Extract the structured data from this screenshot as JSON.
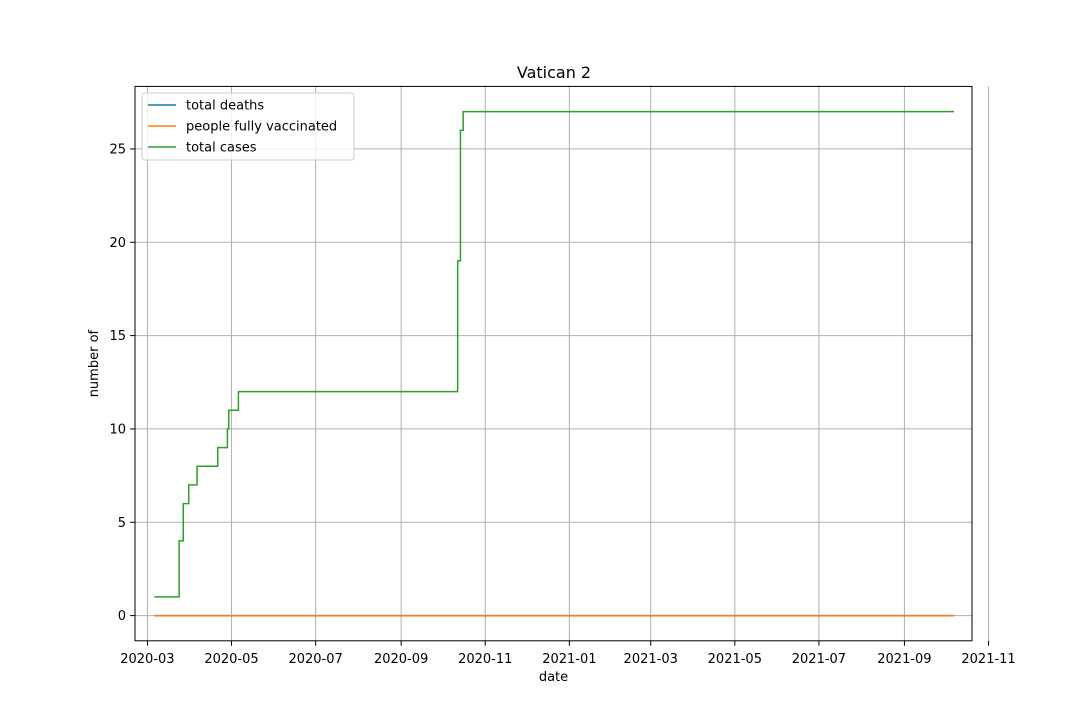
{
  "chart_data": {
    "type": "line",
    "title": "Vatican 2",
    "xlabel": "date",
    "ylabel": "number of",
    "xlim": [
      "2020-02-21",
      "2021-10-20"
    ],
    "ylim": [
      -1.35,
      28.35
    ],
    "x_ticks": [
      "2020-03-01",
      "2020-05-01",
      "2020-07-01",
      "2020-09-01",
      "2020-11-01",
      "2021-01-01",
      "2021-03-01",
      "2021-05-01",
      "2021-07-01",
      "2021-09-01",
      "2021-11-01"
    ],
    "x_tick_labels": [
      "2020-03",
      "2020-05",
      "2020-07",
      "2020-09",
      "2020-11",
      "2021-01",
      "2021-03",
      "2021-05",
      "2021-07",
      "2021-09",
      "2021-11"
    ],
    "y_ticks": [
      0,
      5,
      10,
      15,
      20,
      25
    ],
    "y_tick_labels": [
      "0",
      "5",
      "10",
      "15",
      "20",
      "25"
    ],
    "grid": true,
    "legend_position": "top-left",
    "series": [
      {
        "name": "total deaths",
        "color": "#1f77b4",
        "step": true,
        "points": [
          [
            "2020-03-06",
            0
          ],
          [
            "2021-10-07",
            0
          ]
        ]
      },
      {
        "name": "people fully vaccinated",
        "color": "#ff7f0e",
        "step": true,
        "points": [
          [
            "2020-03-06",
            0
          ],
          [
            "2021-10-07",
            0
          ]
        ]
      },
      {
        "name": "total cases",
        "color": "#2ca02c",
        "step": true,
        "points": [
          [
            "2020-03-06",
            1
          ],
          [
            "2020-03-24",
            4
          ],
          [
            "2020-03-27",
            6
          ],
          [
            "2020-03-31",
            7
          ],
          [
            "2020-04-06",
            8
          ],
          [
            "2020-04-21",
            9
          ],
          [
            "2020-04-28",
            10
          ],
          [
            "2020-04-29",
            11
          ],
          [
            "2020-05-06",
            12
          ],
          [
            "2020-10-12",
            19
          ],
          [
            "2020-10-14",
            26
          ],
          [
            "2020-10-16",
            27
          ],
          [
            "2021-10-07",
            27
          ]
        ]
      }
    ]
  }
}
